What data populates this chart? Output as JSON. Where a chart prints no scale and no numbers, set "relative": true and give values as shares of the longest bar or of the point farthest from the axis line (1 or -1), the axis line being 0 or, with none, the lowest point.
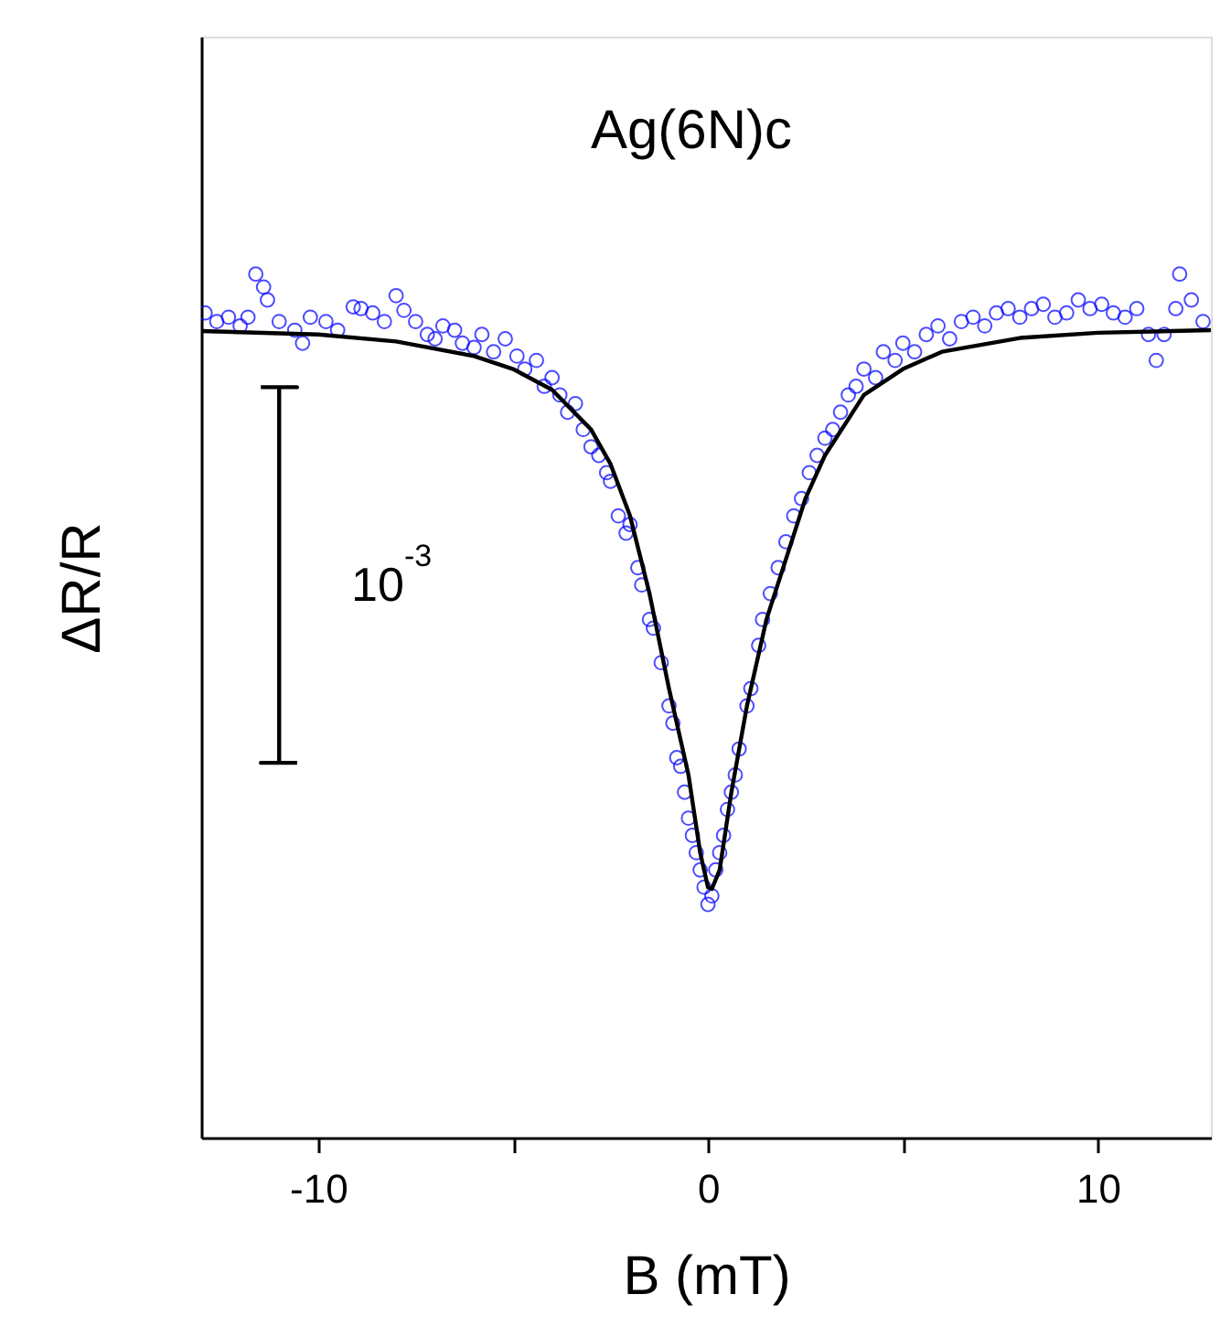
{
  "chart_data": {
    "type": "scatter",
    "title": "Ag(6N)c",
    "xlabel": "B (mT)",
    "ylabel": "ΔR/R",
    "relative": true,
    "xlim": [
      -13,
      12.9
    ],
    "xticks": [
      -10,
      {
        "value": -5,
        "label": null
      },
      0,
      {
        "value": 5,
        "label": null
      },
      10
    ],
    "grid": false,
    "marker": "circle",
    "annotations": [
      "10$^{-3}$"
    ],
    "series": [
      {
        "type": "line",
        "color": "#000000",
        "marker": "none",
        "line_style": "solid",
        "x": [
          -11.47,
          -10.54,
          -11.0,
          -11.0,
          -11.47,
          -10.54
        ],
        "values": [
          0.869,
          0.869,
          0.869,
          0.434,
          0.434,
          0.434
        ]
      },
      {
        "color": "#0000ff",
        "x": [
          -12.9,
          -12.6,
          -12.3,
          -12.0,
          -11.8,
          -11.6,
          -11.4,
          -11.3,
          -11.0,
          -10.6,
          -10.4,
          -10.2,
          -9.8,
          -9.5,
          -9.1,
          -8.9,
          -8.6,
          -8.3,
          -8.0,
          -7.8,
          -7.5,
          -7.2,
          -7.0,
          -6.8,
          -6.5,
          -6.3,
          -6.0,
          -5.8,
          -5.5,
          -5.2,
          -4.9,
          -4.7,
          -4.4,
          -4.2,
          -4.0,
          -3.8,
          -3.6,
          -3.4,
          -3.2,
          -3.0,
          -2.8,
          -2.6,
          -2.5,
          -2.3,
          -2.1,
          -2.0,
          -1.8,
          -1.7,
          -1.5,
          -1.4,
          -1.2,
          -1.0,
          -0.9,
          -0.8,
          -0.7,
          -0.6,
          -0.5,
          -0.4,
          -0.3,
          -0.2,
          -0.1,
          0.0,
          0.1,
          0.2,
          0.3,
          0.4,
          0.5,
          0.6,
          0.7,
          0.8,
          1.0,
          1.1,
          1.3,
          1.4,
          1.6,
          1.8,
          2.0,
          2.2,
          2.4,
          2.6,
          2.8,
          3.0,
          3.2,
          3.4,
          3.6,
          3.8,
          4.0,
          4.3,
          4.5,
          4.8,
          5.0,
          5.3,
          5.6,
          5.9,
          6.2,
          6.5,
          6.8,
          7.1,
          7.4,
          7.7,
          8.0,
          8.3,
          8.6,
          8.9,
          9.2,
          9.5,
          9.8,
          10.1,
          10.4,
          10.7,
          11.0,
          11.3,
          11.5,
          11.7,
          12.0,
          12.1,
          12.4,
          12.7
        ],
        "values": [
          0.955,
          0.945,
          0.95,
          0.94,
          0.95,
          1.0,
          0.985,
          0.97,
          0.945,
          0.935,
          0.92,
          0.95,
          0.945,
          0.935,
          0.962,
          0.96,
          0.955,
          0.945,
          0.975,
          0.958,
          0.945,
          0.93,
          0.925,
          0.94,
          0.935,
          0.92,
          0.915,
          0.93,
          0.91,
          0.925,
          0.905,
          0.89,
          0.9,
          0.87,
          0.88,
          0.86,
          0.84,
          0.85,
          0.82,
          0.8,
          0.79,
          0.77,
          0.76,
          0.72,
          0.7,
          0.71,
          0.66,
          0.64,
          0.6,
          0.59,
          0.55,
          0.5,
          0.48,
          0.44,
          0.43,
          0.4,
          0.37,
          0.35,
          0.33,
          0.31,
          0.29,
          0.27,
          0.28,
          0.31,
          0.33,
          0.35,
          0.38,
          0.4,
          0.42,
          0.45,
          0.5,
          0.52,
          0.57,
          0.6,
          0.63,
          0.66,
          0.69,
          0.72,
          0.74,
          0.77,
          0.79,
          0.81,
          0.82,
          0.84,
          0.86,
          0.87,
          0.89,
          0.88,
          0.91,
          0.9,
          0.92,
          0.91,
          0.93,
          0.94,
          0.925,
          0.945,
          0.95,
          0.94,
          0.955,
          0.96,
          0.95,
          0.96,
          0.965,
          0.95,
          0.955,
          0.97,
          0.96,
          0.965,
          0.955,
          0.95,
          0.96,
          0.93,
          0.9,
          0.93,
          0.96,
          1.0,
          0.97,
          0.945
        ]
      },
      {
        "type": "line",
        "color": "#000000",
        "marker": "none",
        "line_style": "solid",
        "x": [
          -13,
          -10,
          -8,
          -6,
          -5,
          -4,
          -3,
          -2.5,
          -2,
          -1.5,
          -1,
          -0.5,
          -0.2,
          0,
          0.1,
          0.3,
          0.6,
          1,
          1.5,
          2,
          2.5,
          3,
          4,
          5,
          6,
          8,
          10,
          12.9
        ],
        "values": [
          0.934,
          0.93,
          0.922,
          0.905,
          0.89,
          0.866,
          0.82,
          0.78,
          0.72,
          0.63,
          0.52,
          0.42,
          0.33,
          0.29,
          0.288,
          0.31,
          0.4,
          0.5,
          0.6,
          0.67,
          0.74,
          0.79,
          0.86,
          0.89,
          0.91,
          0.926,
          0.932,
          0.935
        ]
      }
    ]
  }
}
